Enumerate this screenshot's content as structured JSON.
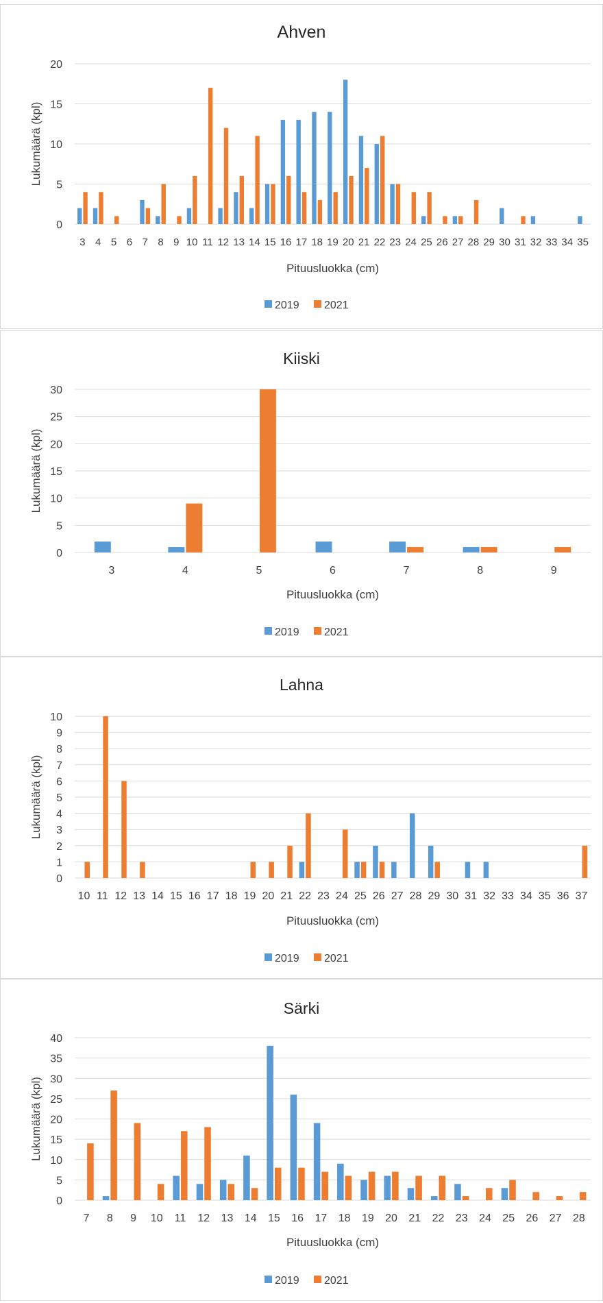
{
  "colors": {
    "series_2019": "#5b9bd5",
    "series_2021": "#ed7d31",
    "grid": "#d9d9d9",
    "text": "#404040",
    "border": "#d9d9d9"
  },
  "chart_data": [
    {
      "type": "bar",
      "title": "Ahven",
      "xlabel": "Pituusluokka (cm)",
      "ylabel": "Lukumäärä (kpl)",
      "ylim": [
        0,
        20
      ],
      "yticks": [
        0,
        5,
        10,
        15,
        20
      ],
      "grid": true,
      "legend": "bottom",
      "categories": [
        "3",
        "4",
        "5",
        "6",
        "7",
        "8",
        "9",
        "10",
        "11",
        "12",
        "13",
        "14",
        "15",
        "16",
        "17",
        "18",
        "19",
        "20",
        "21",
        "22",
        "23",
        "24",
        "25",
        "26",
        "27",
        "28",
        "29",
        "30",
        "31",
        "32",
        "33",
        "34",
        "35"
      ],
      "series": [
        {
          "name": "2019",
          "values": [
            2,
            2,
            0,
            0,
            3,
            1,
            0,
            2,
            0,
            2,
            4,
            2,
            5,
            13,
            13,
            14,
            14,
            18,
            11,
            10,
            5,
            0,
            1,
            0,
            1,
            0,
            0,
            2,
            0,
            1,
            0,
            0,
            1
          ]
        },
        {
          "name": "2021",
          "values": [
            4,
            4,
            1,
            0,
            2,
            5,
            1,
            6,
            17,
            12,
            6,
            11,
            5,
            6,
            4,
            3,
            4,
            6,
            7,
            11,
            5,
            4,
            4,
            1,
            1,
            3,
            0,
            0,
            1,
            0,
            0,
            0,
            0
          ]
        }
      ]
    },
    {
      "type": "bar",
      "title": "Kiiski",
      "xlabel": "Pituusluokka (cm)",
      "ylabel": "Lukumäärä (kpl)",
      "ylim": [
        0,
        30
      ],
      "yticks": [
        0,
        5,
        10,
        15,
        20,
        25,
        30
      ],
      "grid": true,
      "legend": "bottom",
      "categories": [
        "3",
        "4",
        "5",
        "6",
        "7",
        "8",
        "9"
      ],
      "series": [
        {
          "name": "2019",
          "values": [
            2,
            1,
            0,
            2,
            2,
            1,
            0
          ]
        },
        {
          "name": "2021",
          "values": [
            0,
            9,
            30,
            0,
            1,
            1,
            1
          ]
        }
      ]
    },
    {
      "type": "bar",
      "title": "Lahna",
      "xlabel": "Pituusluokka (cm)",
      "ylabel": "Lukumäärä (kpl)",
      "ylim": [
        0,
        10
      ],
      "yticks": [
        0,
        1,
        2,
        3,
        4,
        5,
        6,
        7,
        8,
        9,
        10
      ],
      "grid": true,
      "legend": "bottom",
      "categories": [
        "10",
        "11",
        "12",
        "13",
        "14",
        "15",
        "16",
        "17",
        "18",
        "19",
        "20",
        "21",
        "22",
        "23",
        "24",
        "25",
        "26",
        "27",
        "28",
        "29",
        "30",
        "31",
        "32",
        "33",
        "34",
        "35",
        "36",
        "37"
      ],
      "series": [
        {
          "name": "2019",
          "values": [
            0,
            0,
            0,
            0,
            0,
            0,
            0,
            0,
            0,
            0,
            0,
            0,
            1,
            0,
            0,
            1,
            2,
            1,
            4,
            2,
            0,
            1,
            1,
            0,
            0,
            0,
            0,
            0
          ]
        },
        {
          "name": "2021",
          "values": [
            1,
            10,
            6,
            1,
            0,
            0,
            0,
            0,
            0,
            1,
            1,
            2,
            4,
            0,
            3,
            1,
            1,
            0,
            0,
            1,
            0,
            0,
            0,
            0,
            0,
            0,
            0,
            2
          ]
        }
      ]
    },
    {
      "type": "bar",
      "title": "Särki",
      "xlabel": "Pituusluokka (cm)",
      "ylabel": "Lukumäärä (kpl)",
      "ylim": [
        0,
        40
      ],
      "yticks": [
        0,
        5,
        10,
        15,
        20,
        25,
        30,
        35,
        40
      ],
      "grid": true,
      "legend": "bottom",
      "categories": [
        "7",
        "8",
        "9",
        "10",
        "11",
        "12",
        "13",
        "14",
        "15",
        "16",
        "17",
        "18",
        "19",
        "20",
        "21",
        "22",
        "23",
        "24",
        "25",
        "26",
        "27",
        "28"
      ],
      "series": [
        {
          "name": "2019",
          "values": [
            0,
            1,
            0,
            0,
            6,
            4,
            5,
            11,
            38,
            26,
            19,
            9,
            5,
            6,
            3,
            1,
            4,
            0,
            3,
            0,
            0,
            0
          ]
        },
        {
          "name": "2021",
          "values": [
            14,
            27,
            19,
            4,
            17,
            18,
            4,
            3,
            8,
            8,
            7,
            6,
            7,
            7,
            6,
            6,
            1,
            3,
            5,
            2,
            1,
            2
          ]
        }
      ]
    }
  ]
}
